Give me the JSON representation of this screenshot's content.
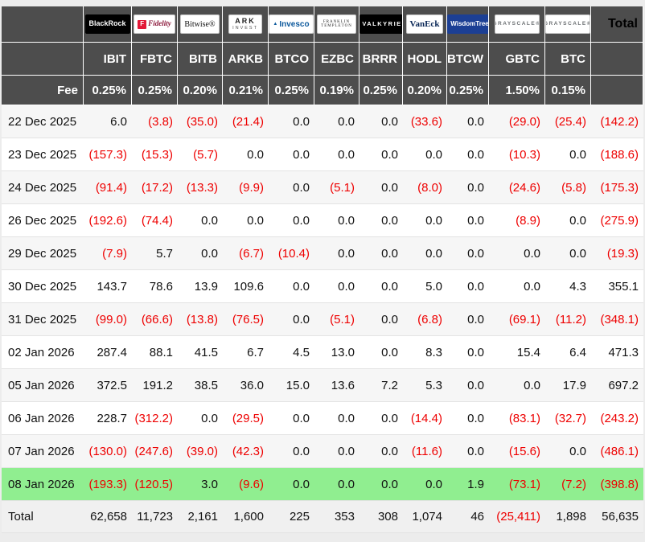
{
  "page": {
    "background": "#ececec"
  },
  "table": {
    "total_label": "Total",
    "fee_label": "Fee",
    "colors": {
      "header_bg": "#4d4d4d",
      "header_text": "#ffffff",
      "negative": "#ee0000",
      "highlight_row": "#90ee90",
      "stripe": "#f6f6f6",
      "total_row_bg": "#f0f0f0"
    },
    "columns": [
      {
        "ticker": "IBIT",
        "fee": "0.25%",
        "issuer": "BlackRock",
        "brand": "blackrock"
      },
      {
        "ticker": "FBTC",
        "fee": "0.25%",
        "issuer": "Fidelity",
        "brand": "fidelity",
        "icon": "F"
      },
      {
        "ticker": "BITB",
        "fee": "0.20%",
        "issuer": "Bitwise®",
        "brand": "bitwise"
      },
      {
        "ticker": "ARKB",
        "fee": "0.21%",
        "issuer": "ARK INVEST",
        "brand": "ark",
        "logo_lines": [
          "ARK",
          "INVEST"
        ]
      },
      {
        "ticker": "BTCO",
        "fee": "0.25%",
        "issuer": "Invesco",
        "brand": "invesco",
        "icon": "▲"
      },
      {
        "ticker": "EZBC",
        "fee": "0.19%",
        "issuer": "FRANKLIN TEMPLETON",
        "brand": "franklin",
        "logo_lines": [
          "FRANKLIN",
          "TEMPLETON"
        ]
      },
      {
        "ticker": "BRRR",
        "fee": "0.25%",
        "issuer": "VALKYRIE",
        "brand": "valkyrie"
      },
      {
        "ticker": "HODL",
        "fee": "0.20%",
        "issuer": "VanEck",
        "brand": "vaneck"
      },
      {
        "ticker": "BTCW",
        "fee": "0.25%",
        "issuer": "WisdomTree",
        "brand": "wisdomtree"
      },
      {
        "ticker": "GBTC",
        "fee": "1.50%",
        "issuer": "GRAYSCALE®",
        "brand": "grayscale"
      },
      {
        "ticker": "BTC",
        "fee": "0.15%",
        "issuer": "GRAYSCALE®",
        "brand": "grayscale"
      }
    ],
    "rows": [
      {
        "date": "22 Dec 2025",
        "values": [
          "6.0",
          "(3.8)",
          "(35.0)",
          "(21.4)",
          "0.0",
          "0.0",
          "0.0",
          "(33.6)",
          "0.0",
          "(29.0)",
          "(25.4)",
          "(142.2)"
        ]
      },
      {
        "date": "23 Dec 2025",
        "values": [
          "(157.3)",
          "(15.3)",
          "(5.7)",
          "0.0",
          "0.0",
          "0.0",
          "0.0",
          "0.0",
          "0.0",
          "(10.3)",
          "0.0",
          "(188.6)"
        ]
      },
      {
        "date": "24 Dec 2025",
        "values": [
          "(91.4)",
          "(17.2)",
          "(13.3)",
          "(9.9)",
          "0.0",
          "(5.1)",
          "0.0",
          "(8.0)",
          "0.0",
          "(24.6)",
          "(5.8)",
          "(175.3)"
        ]
      },
      {
        "date": "26 Dec 2025",
        "values": [
          "(192.6)",
          "(74.4)",
          "0.0",
          "0.0",
          "0.0",
          "0.0",
          "0.0",
          "0.0",
          "0.0",
          "(8.9)",
          "0.0",
          "(275.9)"
        ]
      },
      {
        "date": "29 Dec 2025",
        "values": [
          "(7.9)",
          "5.7",
          "0.0",
          "(6.7)",
          "(10.4)",
          "0.0",
          "0.0",
          "0.0",
          "0.0",
          "0.0",
          "0.0",
          "(19.3)"
        ]
      },
      {
        "date": "30 Dec 2025",
        "values": [
          "143.7",
          "78.6",
          "13.9",
          "109.6",
          "0.0",
          "0.0",
          "0.0",
          "5.0",
          "0.0",
          "0.0",
          "4.3",
          "355.1"
        ]
      },
      {
        "date": "31 Dec 2025",
        "values": [
          "(99.0)",
          "(66.6)",
          "(13.8)",
          "(76.5)",
          "0.0",
          "(5.1)",
          "0.0",
          "(6.8)",
          "0.0",
          "(69.1)",
          "(11.2)",
          "(348.1)"
        ]
      },
      {
        "date": "02 Jan 2026",
        "values": [
          "287.4",
          "88.1",
          "41.5",
          "6.7",
          "4.5",
          "13.0",
          "0.0",
          "8.3",
          "0.0",
          "15.4",
          "6.4",
          "471.3"
        ]
      },
      {
        "date": "05 Jan 2026",
        "values": [
          "372.5",
          "191.2",
          "38.5",
          "36.0",
          "15.0",
          "13.6",
          "7.2",
          "5.3",
          "0.0",
          "0.0",
          "17.9",
          "697.2"
        ]
      },
      {
        "date": "06 Jan 2026",
        "values": [
          "228.7",
          "(312.2)",
          "0.0",
          "(29.5)",
          "0.0",
          "0.0",
          "0.0",
          "(14.4)",
          "0.0",
          "(83.1)",
          "(32.7)",
          "(243.2)"
        ]
      },
      {
        "date": "07 Jan 2026",
        "values": [
          "(130.0)",
          "(247.6)",
          "(39.0)",
          "(42.3)",
          "0.0",
          "0.0",
          "0.0",
          "(11.6)",
          "0.0",
          "(15.6)",
          "0.0",
          "(486.1)"
        ]
      },
      {
        "date": "08 Jan 2026",
        "highlight": true,
        "values": [
          "(193.3)",
          "(120.5)",
          "3.0",
          "(9.6)",
          "0.0",
          "0.0",
          "0.0",
          "0.0",
          "1.9",
          "(73.1)",
          "(7.2)",
          "(398.8)"
        ]
      }
    ],
    "total_row": {
      "label": "Total",
      "values": [
        "62,658",
        "11,723",
        "2,161",
        "1,600",
        "225",
        "353",
        "308",
        "1,074",
        "46",
        "(25,411)",
        "1,898",
        "56,635"
      ]
    }
  }
}
